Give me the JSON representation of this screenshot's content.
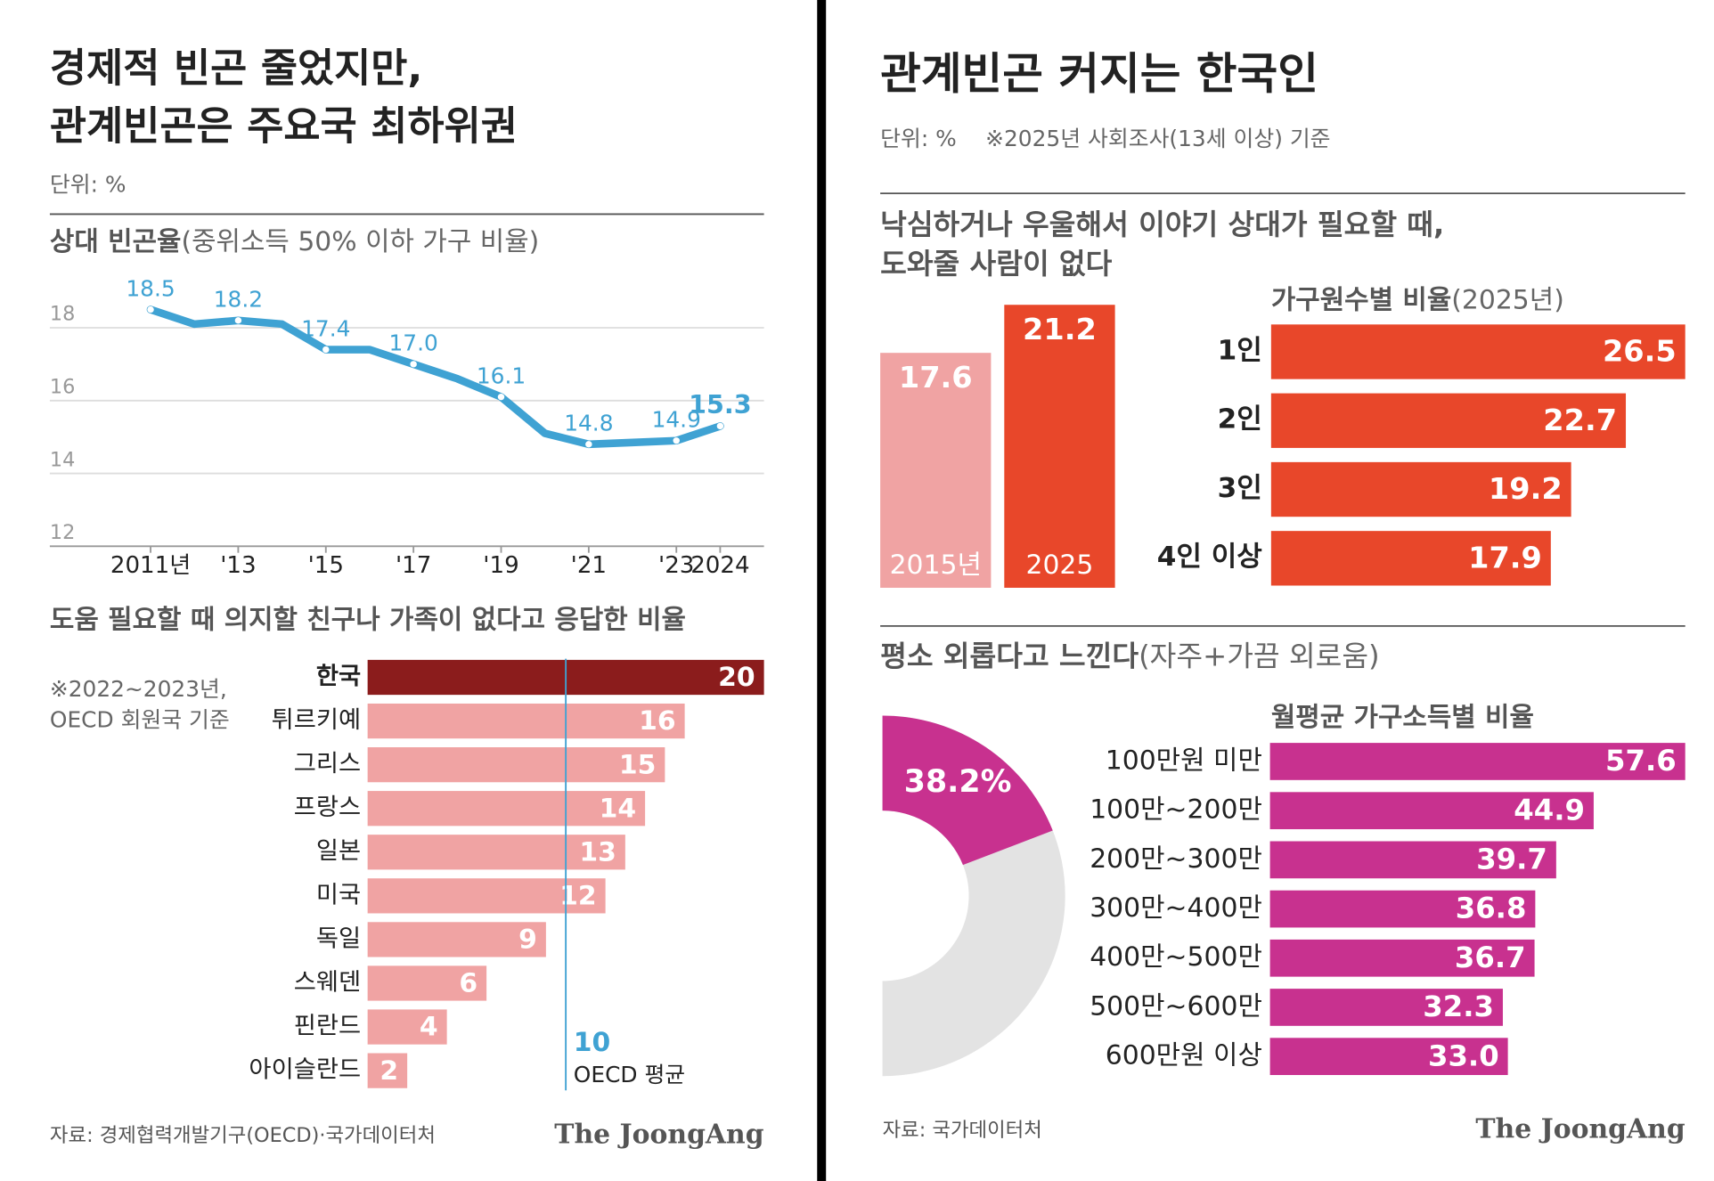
{
  "left": {
    "title": [
      "경제적 빈곤 줄었지만,",
      "관계빈곤은 주요국 최하위권"
    ],
    "unit": "단위: %",
    "source": "자료: 경제협력개발기구(OECD)·국가데이터처",
    "brand": "The JoongAng"
  },
  "right": {
    "title": "관계빈곤 커지는 한국인",
    "unit": "단위: %",
    "note": "※2025년 사회조사(13세 이상) 기준",
    "source": "자료: 국가데이터처",
    "brand": "The JoongAng"
  },
  "chart_data": [
    {
      "type": "line",
      "title": "상대 빈곤율",
      "subtitle": "(중위소득 50% 이하 가구 비율)",
      "x": [
        2011,
        2012,
        2013,
        2014,
        2015,
        2016,
        2017,
        2018,
        2019,
        2020,
        2021,
        2022,
        2023,
        2024
      ],
      "values": [
        18.5,
        18.1,
        18.2,
        18.1,
        17.4,
        17.4,
        17.0,
        16.6,
        16.1,
        15.1,
        14.8,
        14.85,
        14.9,
        15.3
      ],
      "value_labels": [
        "18.5",
        null,
        "18.2",
        null,
        "17.4",
        null,
        "17.0",
        null,
        "16.1",
        null,
        "14.8",
        null,
        "14.9",
        "15.3"
      ],
      "color": "#3fa2d3",
      "xlim": [
        2008.7,
        2025
      ],
      "ylim": [
        12,
        19.35
      ],
      "yticks": [
        12,
        14,
        16,
        18
      ],
      "xticks": [
        {
          "value": 2011,
          "label": "2011년"
        },
        {
          "value": 2013,
          "label": "'13"
        },
        {
          "value": 2015,
          "label": "'15"
        },
        {
          "value": 2017,
          "label": "'17"
        },
        {
          "value": 2019,
          "label": "'19"
        },
        {
          "value": 2021,
          "label": "'21"
        },
        {
          "value": 2023,
          "label": "'23"
        },
        2024
      ],
      "grid": true
    },
    {
      "type": "hbar",
      "title": "도움 필요할 때 의지할 친구나 가족이 없다고 응답한 비율",
      "note": [
        "※2022~2023년,",
        "OECD 회원국 기준"
      ],
      "categories": [
        "한국",
        "튀르키예",
        "그리스",
        "프랑스",
        "일본",
        "미국",
        "독일",
        "스웨덴",
        "핀란드",
        "아이슬란드"
      ],
      "values": [
        20,
        16,
        15,
        14,
        13,
        12,
        9,
        6,
        4,
        2
      ],
      "colors": [
        "#8b1c1c",
        "#f0a3a3",
        "#f0a3a3",
        "#f0a3a3",
        "#f0a3a3",
        "#f0a3a3",
        "#f0a3a3",
        "#f0a3a3",
        "#f0a3a3",
        "#f0a3a3"
      ],
      "reference": {
        "value": 10,
        "label": "OECD 평균"
      }
    },
    {
      "type": "bar",
      "title": [
        "낙심하거나 우울해서 이야기 상대가 필요할 때,",
        "도와줄 사람이 없다"
      ],
      "categories": [
        "2015년",
        "2025"
      ],
      "values": [
        17.6,
        21.2
      ],
      "colors": [
        "#f0a3a3",
        "#e8472a"
      ]
    },
    {
      "type": "hbar",
      "title": "가구원수별 비율",
      "subtitle": "(2025년)",
      "categories": [
        "1인",
        "2인",
        "3인",
        "4인 이상"
      ],
      "values": [
        26.5,
        22.7,
        19.2,
        17.9
      ],
      "color": "#e8472a"
    },
    {
      "type": "pie",
      "title": "평소 외롭다고 느낀다",
      "subtitle": "(자주+가끔 외로움)",
      "values": [
        38.2
      ],
      "value_labels": [
        "38.2%"
      ],
      "color": "#c8318f"
    },
    {
      "type": "hbar",
      "title": "월평균 가구소득별 비율",
      "categories": [
        "100만원 미만",
        "100만~200만",
        "200만~300만",
        "300만~400만",
        "400만~500만",
        "500만~600만",
        "600만원 이상"
      ],
      "values": [
        57.6,
        44.9,
        39.7,
        36.8,
        36.7,
        32.3,
        33.0
      ],
      "value_labels": [
        "57.6",
        "44.9",
        "39.7",
        "36.8",
        "36.7",
        "32.3",
        "33.0"
      ],
      "color": "#c8318f"
    }
  ]
}
